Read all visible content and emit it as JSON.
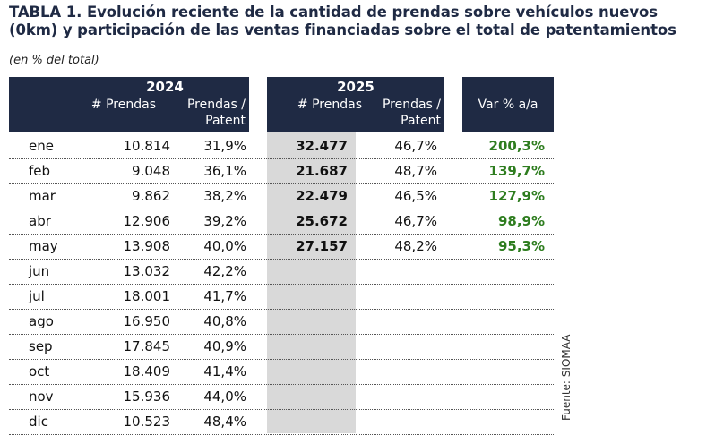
{
  "title_line1": "TABLA 1. Evolución reciente de la cantidad de prendas sobre vehículos nuevos",
  "title_line2": "(0km) y participación de las ventas financiadas sobre el total de patentamientos",
  "subtitle": "(en % del total)",
  "header": {
    "year_2024": "2024",
    "year_2025": "2025",
    "col_prendas": "# Prendas",
    "col_prendas_patent_1": "Prendas /",
    "col_prendas_patent_2": "Patent",
    "col_var": "Var % a/a"
  },
  "rows": [
    {
      "month": "ene",
      "p2024": "10.814",
      "pp2024": "31,9%",
      "p2025": "32.477",
      "pp2025": "46,7%",
      "var": "200,3%"
    },
    {
      "month": "feb",
      "p2024": "9.048",
      "pp2024": "36,1%",
      "p2025": "21.687",
      "pp2025": "48,7%",
      "var": "139,7%"
    },
    {
      "month": "mar",
      "p2024": "9.862",
      "pp2024": "38,2%",
      "p2025": "22.479",
      "pp2025": "46,5%",
      "var": "127,9%"
    },
    {
      "month": "abr",
      "p2024": "12.906",
      "pp2024": "39,2%",
      "p2025": "25.672",
      "pp2025": "46,7%",
      "var": "98,9%"
    },
    {
      "month": "may",
      "p2024": "13.908",
      "pp2024": "40,0%",
      "p2025": "27.157",
      "pp2025": "48,2%",
      "var": "95,3%"
    },
    {
      "month": "jun",
      "p2024": "13.032",
      "pp2024": "42,2%",
      "p2025": "",
      "pp2025": "",
      "var": ""
    },
    {
      "month": "jul",
      "p2024": "18.001",
      "pp2024": "41,7%",
      "p2025": "",
      "pp2025": "",
      "var": ""
    },
    {
      "month": "ago",
      "p2024": "16.950",
      "pp2024": "40,8%",
      "p2025": "",
      "pp2025": "",
      "var": ""
    },
    {
      "month": "sep",
      "p2024": "17.845",
      "pp2024": "40,9%",
      "p2025": "",
      "pp2025": "",
      "var": ""
    },
    {
      "month": "oct",
      "p2024": "18.409",
      "pp2024": "41,4%",
      "p2025": "",
      "pp2025": "",
      "var": ""
    },
    {
      "month": "nov",
      "p2024": "15.936",
      "pp2024": "44,0%",
      "p2025": "",
      "pp2025": "",
      "var": ""
    },
    {
      "month": "dic",
      "p2024": "10.523",
      "pp2024": "48,4%",
      "p2025": "",
      "pp2025": "",
      "var": ""
    }
  ],
  "source": "Fuente: SIOMAA",
  "colors": {
    "header_bg": "#1f2a44",
    "var_text": "#2e7d1f",
    "highlight_col": "#d9d9d9"
  }
}
